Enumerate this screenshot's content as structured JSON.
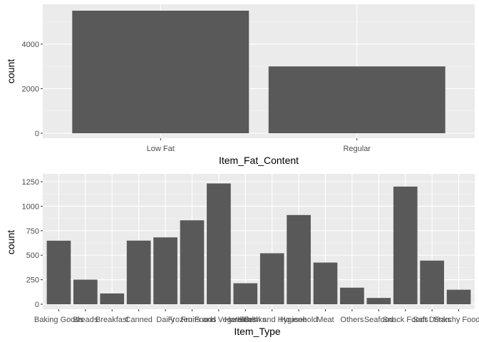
{
  "chart_data": [
    {
      "type": "bar",
      "xlabel": "Item_Fat_Content",
      "ylabel": "count",
      "categories": [
        "Low Fat",
        "Regular"
      ],
      "values": [
        5500,
        3000
      ],
      "ylim": [
        0,
        5500
      ],
      "yticks": [
        0,
        2000,
        4000
      ],
      "grid": true,
      "bar_color": "#595959",
      "panel_color": "#ebebeb"
    },
    {
      "type": "bar",
      "xlabel": "Item_Type",
      "ylabel": "count",
      "categories": [
        "Baking Goods",
        "Breads",
        "Breakfast",
        "Canned",
        "Dairy",
        "Frozen Foods",
        "Fruits and Vegetables",
        "Hard Drinks",
        "Health and Hygiene",
        "Household",
        "Meat",
        "Others",
        "Seafood",
        "Snack Foods",
        "Soft Drinks",
        "Starchy Foods"
      ],
      "values": [
        648,
        251,
        110,
        649,
        682,
        856,
        1232,
        214,
        520,
        910,
        425,
        169,
        64,
        1200,
        445,
        148
      ],
      "ylim": [
        0,
        1250
      ],
      "yticks": [
        0,
        250,
        500,
        750,
        1000,
        1250
      ],
      "grid": true,
      "bar_color": "#595959",
      "panel_color": "#ebebeb"
    }
  ]
}
